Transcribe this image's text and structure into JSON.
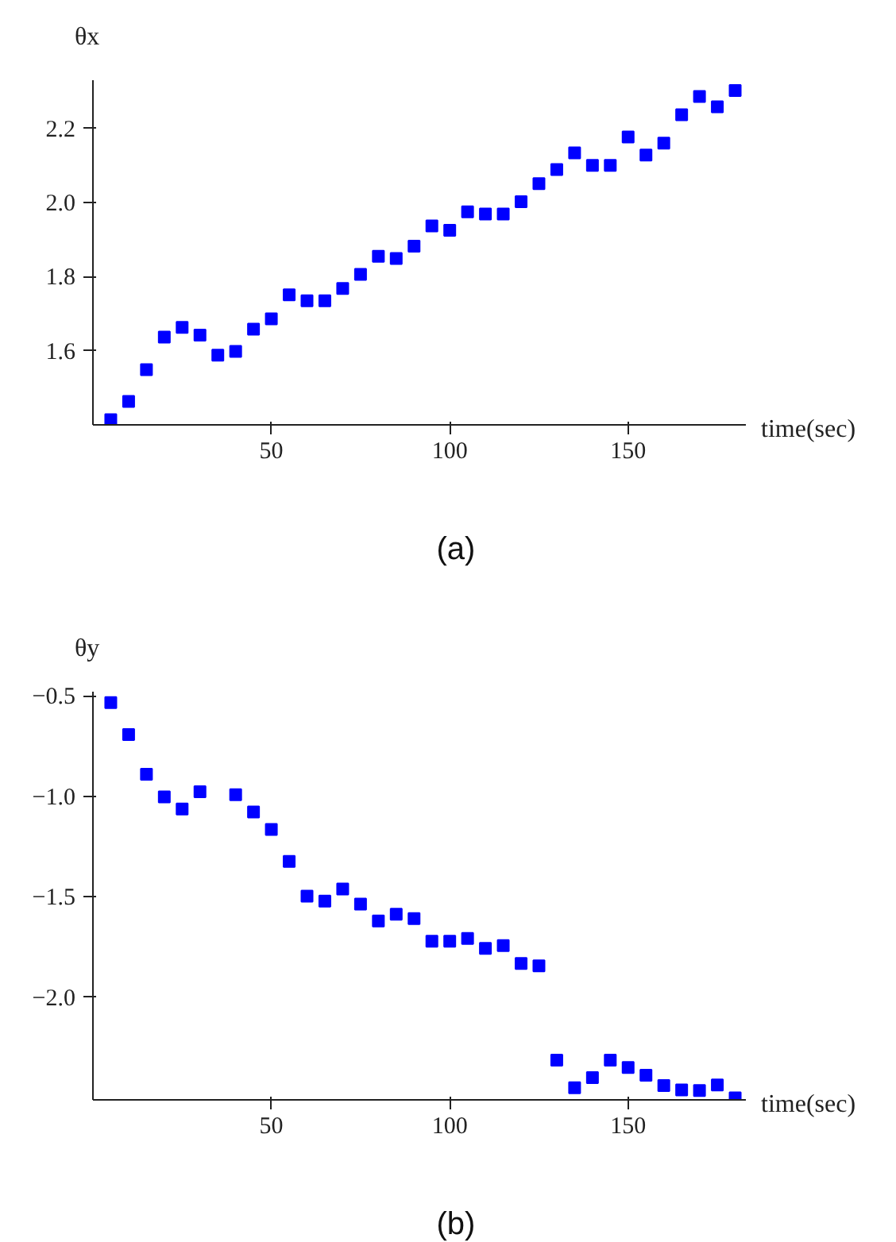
{
  "chart_data": [
    {
      "type": "scatter",
      "xlabel": "time(sec)",
      "ylabel": "θx",
      "annotations": [
        "(a)"
      ],
      "marker": "square",
      "x": [
        5,
        10,
        15,
        20,
        25,
        30,
        35,
        40,
        45,
        50,
        55,
        60,
        65,
        70,
        75,
        80,
        85,
        90,
        95,
        100,
        105,
        110,
        115,
        120,
        125,
        130,
        135,
        140,
        145,
        150,
        155,
        160,
        165,
        170,
        175,
        180
      ],
      "series": [
        {
          "color": "#0000ff",
          "values": [
            1.414,
            1.463,
            1.549,
            1.637,
            1.663,
            1.642,
            1.588,
            1.598,
            1.658,
            1.686,
            1.751,
            1.735,
            1.735,
            1.768,
            1.806,
            1.855,
            1.849,
            1.882,
            1.937,
            1.925,
            1.975,
            1.969,
            1.969,
            2.002,
            2.051,
            2.089,
            2.134,
            2.1,
            2.1,
            2.177,
            2.128,
            2.16,
            2.237,
            2.286,
            2.258,
            2.302
          ]
        }
      ],
      "xlim": [
        0,
        183
      ],
      "ylim": [
        1.4,
        2.33
      ],
      "xticks": [
        50,
        100,
        150
      ],
      "yticks": [
        1.6,
        1.8,
        {
          "value": 2,
          "label": "2.0"
        },
        2.2
      ]
    },
    {
      "type": "scatter",
      "xlabel": "time(sec)",
      "ylabel": "θy",
      "annotations": [
        "(b)"
      ],
      "marker": "square",
      "x": [
        5,
        10,
        15,
        20,
        25,
        30,
        40,
        45,
        50,
        55,
        60,
        65,
        70,
        75,
        80,
        85,
        90,
        95,
        100,
        105,
        110,
        115,
        120,
        125,
        130,
        135,
        140,
        145,
        150,
        155,
        160,
        165,
        170,
        175,
        180
      ],
      "series": [
        {
          "color": "#0000ff",
          "values": [
            -0.534,
            -0.693,
            -0.891,
            -1.003,
            -1.064,
            -0.978,
            -0.992,
            -1.078,
            -1.165,
            -1.324,
            -1.497,
            -1.522,
            -1.461,
            -1.536,
            -1.62,
            -1.587,
            -1.609,
            -1.721,
            -1.721,
            -1.707,
            -1.757,
            -1.743,
            -1.832,
            -1.844,
            -2.313,
            -2.45,
            -2.399,
            -2.313,
            -2.349,
            -2.388,
            -2.439,
            -2.461,
            -2.464,
            -2.436,
            -2.5
          ]
        }
      ],
      "xlim": [
        0,
        183
      ],
      "ylim": [
        -2.51,
        -0.48
      ],
      "xticks": [
        50,
        100,
        150
      ],
      "yticks": [
        {
          "value": -2,
          "label": "−2.0"
        },
        {
          "value": -1.5,
          "label": "−1.5"
        },
        {
          "value": -1,
          "label": "−1.0"
        },
        {
          "value": -0.5,
          "label": "−0.5"
        }
      ]
    }
  ]
}
